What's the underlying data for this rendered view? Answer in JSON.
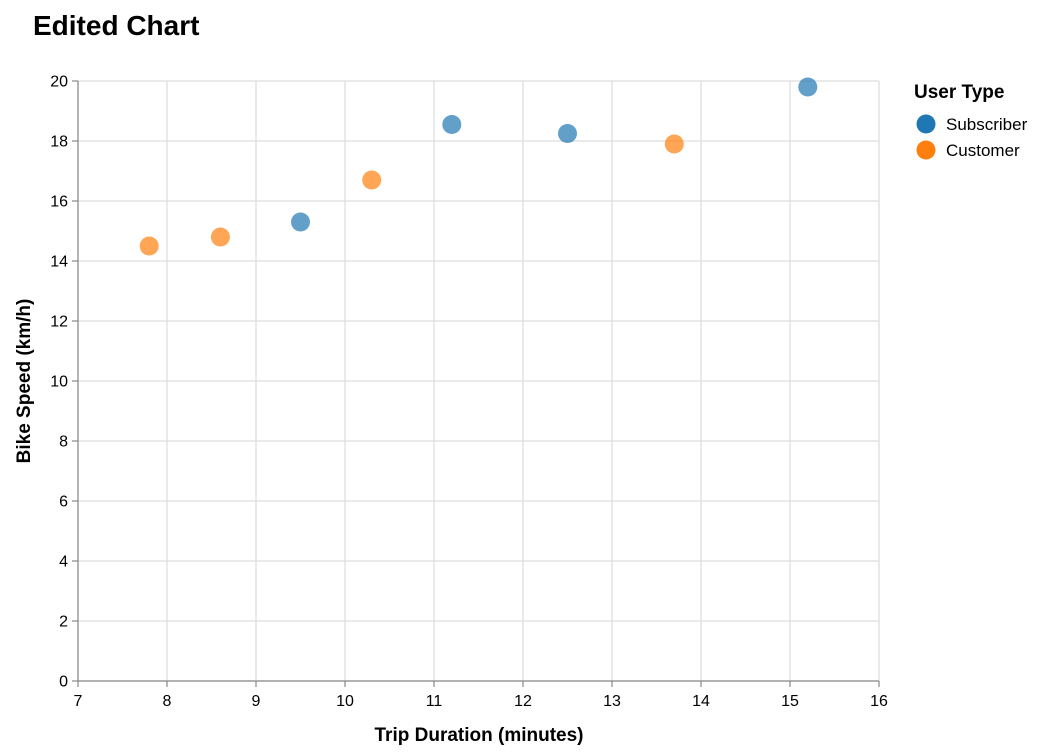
{
  "chart_data": {
    "type": "scatter",
    "title": "Edited Chart",
    "xlabel": "Trip Duration (minutes)",
    "ylabel": "Bike Speed (km/h)",
    "xlim": [
      7,
      16
    ],
    "ylim": [
      0,
      20
    ],
    "x_ticks": [
      "7",
      "8",
      "9",
      "10",
      "11",
      "12",
      "13",
      "14",
      "15",
      "16"
    ],
    "y_ticks": [
      "0",
      "2",
      "4",
      "6",
      "8",
      "10",
      "12",
      "14",
      "16",
      "18",
      "20"
    ],
    "grid": true,
    "legend": {
      "title": "User Type",
      "placement": "right",
      "entries": [
        {
          "label": "Subscriber",
          "color": "#1f77b4"
        },
        {
          "label": "Customer",
          "color": "#ff7f0e"
        }
      ]
    },
    "series": [
      {
        "name": "Subscriber",
        "color": "#1f77b4",
        "points": [
          {
            "x": 9.5,
            "y": 15.3
          },
          {
            "x": 11.2,
            "y": 18.55
          },
          {
            "x": 12.5,
            "y": 18.25
          },
          {
            "x": 15.2,
            "y": 19.8
          }
        ]
      },
      {
        "name": "Customer",
        "color": "#ff7f0e",
        "points": [
          {
            "x": 7.8,
            "y": 14.5
          },
          {
            "x": 8.6,
            "y": 14.8
          },
          {
            "x": 10.3,
            "y": 16.7
          },
          {
            "x": 13.7,
            "y": 17.9
          }
        ]
      }
    ]
  }
}
